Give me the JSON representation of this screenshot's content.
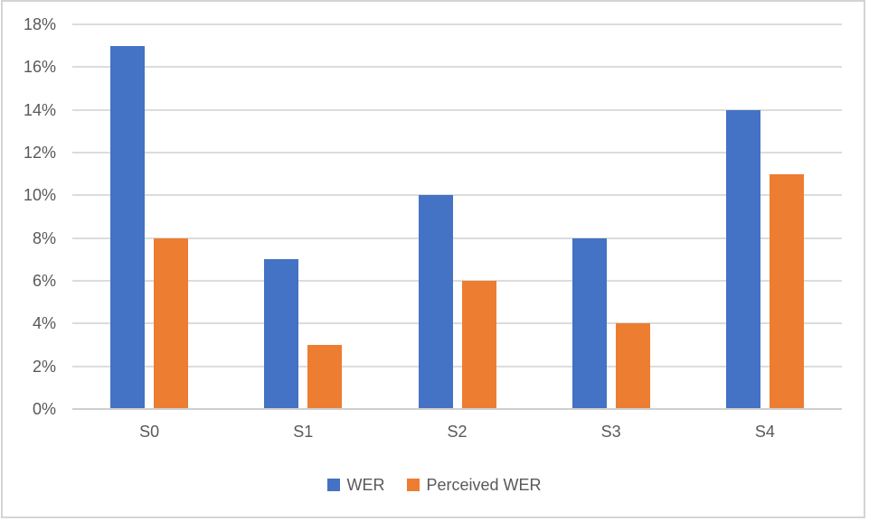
{
  "chart_data": {
    "type": "bar",
    "title": "",
    "xlabel": "",
    "ylabel": "",
    "categories": [
      "S0",
      "S1",
      "S2",
      "S3",
      "S4"
    ],
    "series": [
      {
        "name": "WER",
        "color": "#4472C4",
        "values": [
          17,
          7,
          10,
          8,
          14
        ]
      },
      {
        "name": "Perceived WER",
        "color": "#ED7D31",
        "values": [
          8,
          3,
          6,
          4,
          11
        ]
      }
    ],
    "ylim": [
      0,
      18
    ],
    "ytick_step": 2,
    "ytick_labels": [
      "0%",
      "2%",
      "4%",
      "6%",
      "8%",
      "10%",
      "12%",
      "14%",
      "16%",
      "18%"
    ],
    "grid": true,
    "legend_position": "bottom"
  },
  "colors": {
    "series_wer": "#4472C4",
    "series_perceived_wer": "#ED7D31",
    "gridline": "#DCDCDC",
    "axis_line": "#CFCFCF",
    "tick_label": "#595959",
    "frame_border": "#D4D4D4",
    "background": "#FFFFFF"
  }
}
